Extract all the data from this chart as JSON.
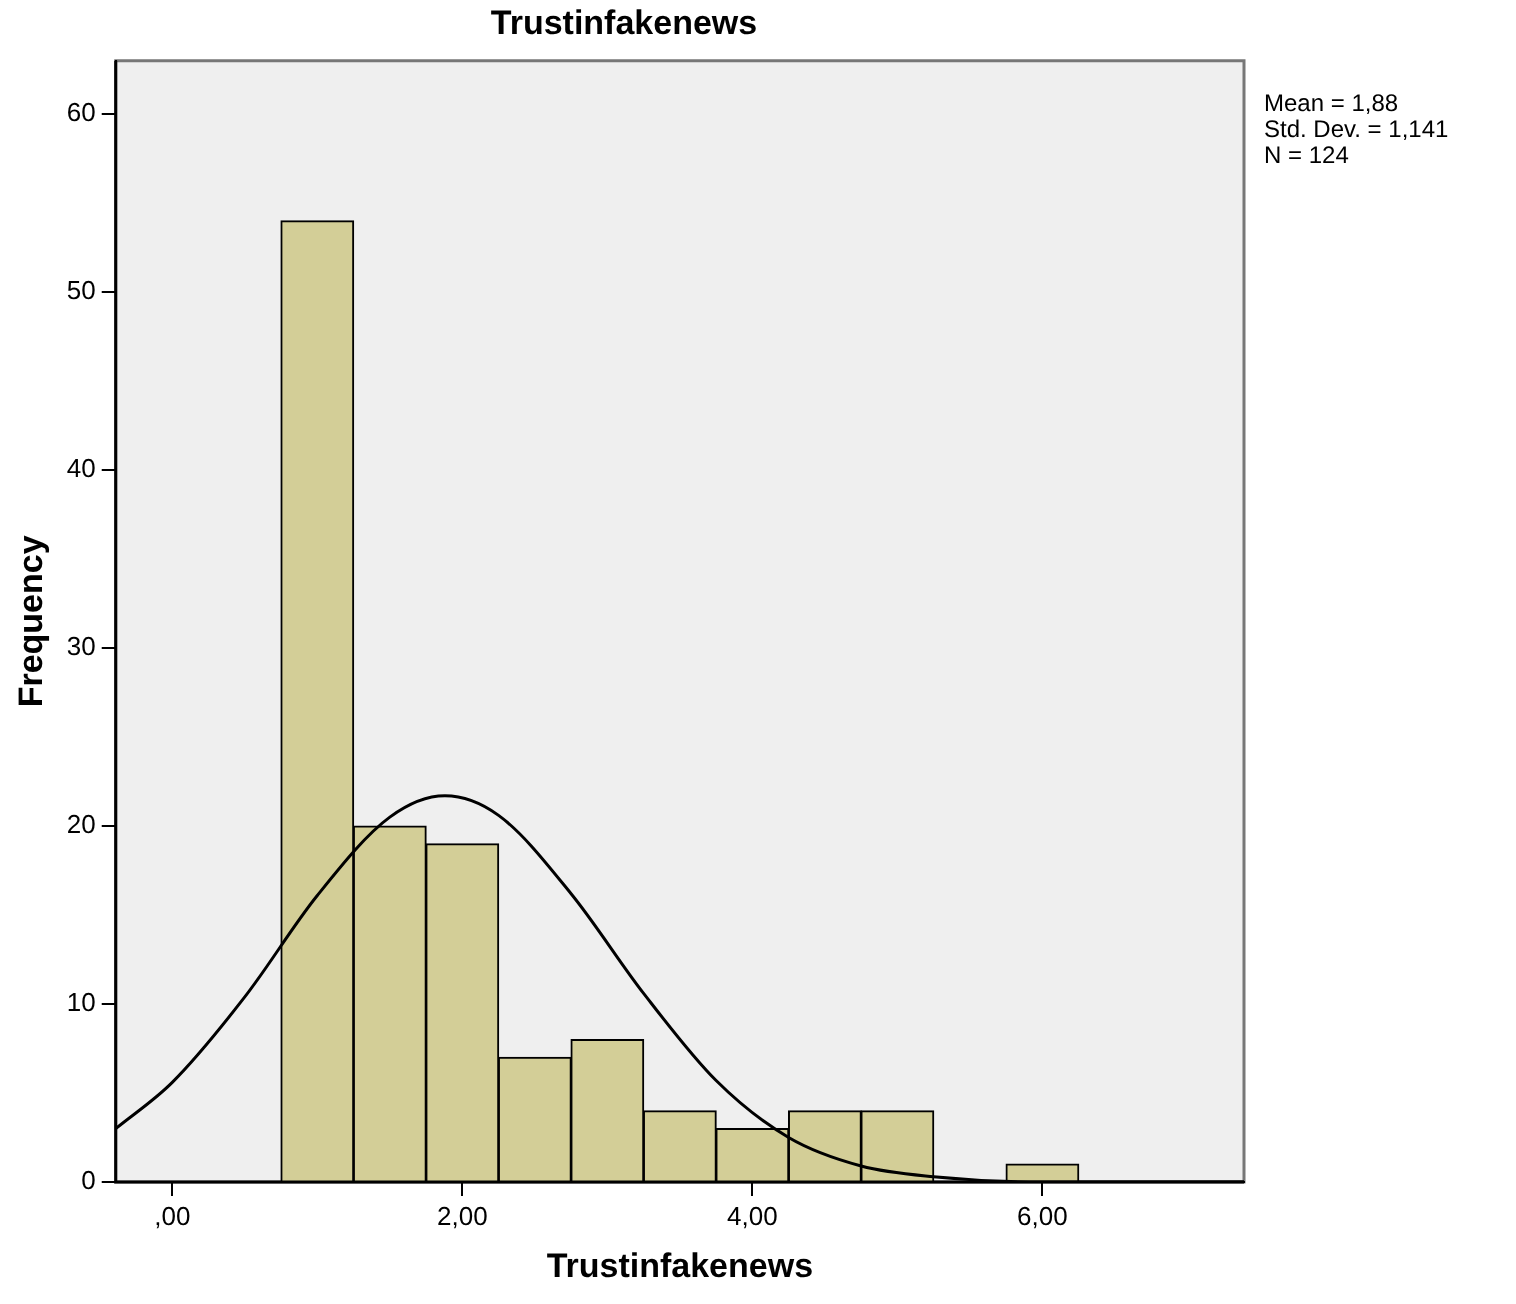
{
  "chart_data": {
    "type": "histogram",
    "title": "Trustinfakenews",
    "xlabel": "Trustinfakenews",
    "ylabel": "Frequency",
    "bins": [
      0.75,
      1.25,
      1.75,
      2.25,
      2.75,
      3.25,
      3.75,
      4.25,
      4.75,
      5.25,
      5.75,
      6.25
    ],
    "values": [
      54,
      20,
      19,
      7,
      8,
      4,
      3,
      4,
      4,
      0,
      1
    ],
    "color": "#d3ce97",
    "series": [
      {
        "type": "line",
        "color": "#000000",
        "x": [
          -0.39,
          0,
          0.5,
          1,
          1.5,
          1.88,
          2.25,
          2.75,
          3.25,
          3.75,
          4.25,
          4.75,
          5.25,
          6,
          7.39
        ],
        "values": [
          3.0,
          5.6,
          10.4,
          16.1,
          20.5,
          21.7,
          20.6,
          16.2,
          10.6,
          5.7,
          2.5,
          0.9,
          0.3,
          0.0,
          0.0
        ]
      }
    ],
    "xlim": [
      -0.39,
      7.39
    ],
    "xticks": [
      {
        "value": 0,
        "label": ",00"
      },
      {
        "value": 2,
        "label": "2,00"
      },
      {
        "value": 4,
        "label": "4,00"
      },
      {
        "value": 6,
        "label": "6,00"
      }
    ],
    "ylim": [
      0,
      63
    ],
    "yticks": [
      0,
      10,
      20,
      30,
      40,
      50,
      60
    ],
    "annotations": [
      "Mean = 1,88",
      "Std. Dev. = 1,141",
      "N = 124"
    ],
    "grid": false,
    "legend": false,
    "marker": "none"
  }
}
